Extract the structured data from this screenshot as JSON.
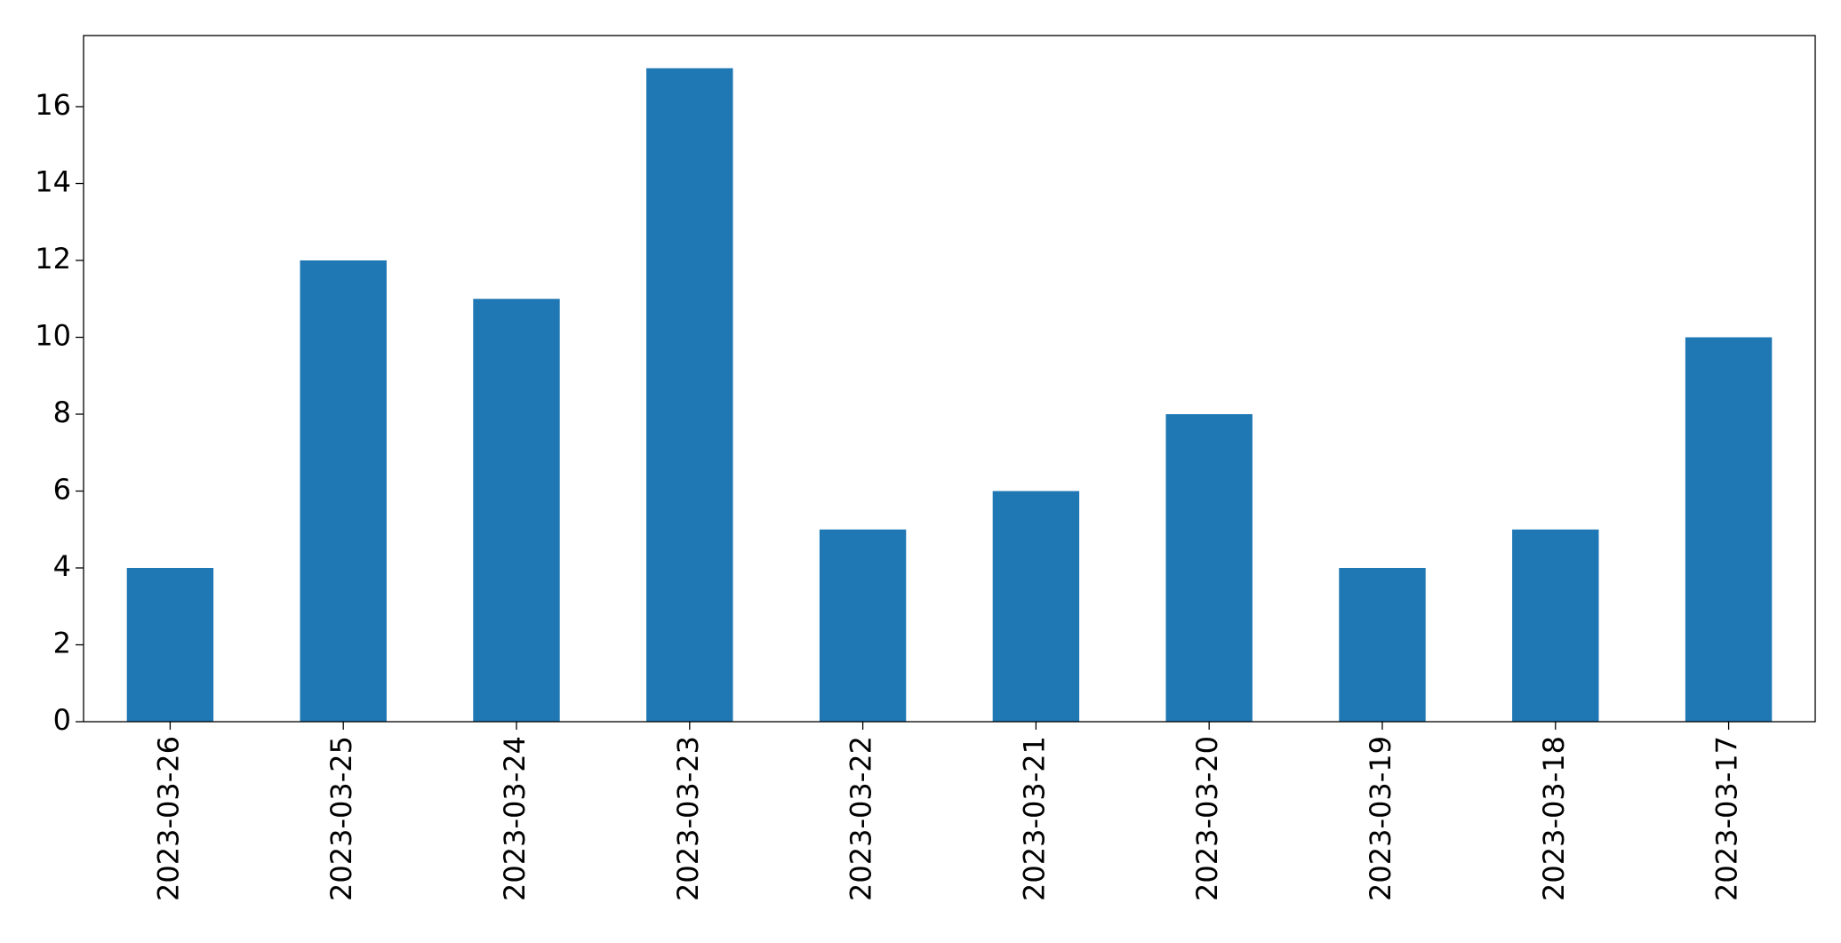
{
  "chart_data": {
    "type": "bar",
    "categories": [
      "2023-03-26",
      "2023-03-25",
      "2023-03-24",
      "2023-03-23",
      "2023-03-22",
      "2023-03-21",
      "2023-03-20",
      "2023-03-19",
      "2023-03-18",
      "2023-03-17"
    ],
    "values": [
      4,
      12,
      11,
      17,
      5,
      6,
      8,
      4,
      5,
      10
    ],
    "color": "#1f77b4",
    "ylim": [
      0,
      17.85
    ],
    "yticks": [
      0,
      2,
      4,
      6,
      8,
      10,
      12,
      14,
      16
    ],
    "grid": false
  }
}
